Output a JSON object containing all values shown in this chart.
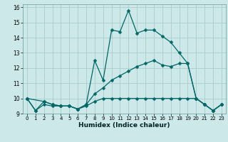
{
  "xlabel": "Humidex (Indice chaleur)",
  "background_color": "#cce8e8",
  "grid_color": "#aacccc",
  "line_color": "#006666",
  "xlim": [
    -0.5,
    23.5
  ],
  "ylim": [
    9.0,
    16.2
  ],
  "yticks": [
    9,
    10,
    11,
    12,
    13,
    14,
    15,
    16
  ],
  "xticks": [
    0,
    1,
    2,
    3,
    4,
    5,
    6,
    7,
    8,
    9,
    10,
    11,
    12,
    13,
    14,
    15,
    16,
    17,
    18,
    19,
    20,
    21,
    22,
    23
  ],
  "line1_x": [
    0,
    1,
    2,
    3,
    4,
    5,
    6,
    7,
    8,
    9,
    10,
    11,
    12,
    13,
    14,
    15,
    16,
    17,
    18,
    19,
    20,
    21,
    22,
    23
  ],
  "line1_y": [
    10.0,
    9.2,
    9.8,
    9.6,
    9.5,
    9.5,
    9.3,
    9.6,
    12.5,
    11.2,
    14.5,
    14.4,
    15.8,
    14.3,
    14.5,
    14.5,
    14.1,
    13.7,
    13.0,
    12.3,
    10.0,
    9.6,
    9.2,
    9.6
  ],
  "line2_x": [
    0,
    2,
    3,
    4,
    5,
    6,
    7,
    8,
    9,
    10,
    11,
    12,
    13,
    14,
    15,
    16,
    17,
    18,
    19,
    20,
    21,
    22,
    23
  ],
  "line2_y": [
    10.0,
    9.8,
    9.6,
    9.5,
    9.5,
    9.3,
    9.6,
    10.3,
    10.7,
    11.2,
    11.5,
    11.8,
    12.1,
    12.3,
    12.5,
    12.2,
    12.1,
    12.3,
    12.3,
    10.0,
    9.6,
    9.2,
    9.6
  ],
  "line3_x": [
    0,
    1,
    2,
    3,
    4,
    5,
    6,
    7,
    8,
    9,
    10,
    11,
    12,
    13,
    14,
    15,
    16,
    17,
    18,
    19,
    20,
    21,
    22,
    23
  ],
  "line3_y": [
    10.0,
    9.2,
    9.6,
    9.5,
    9.5,
    9.5,
    9.3,
    9.5,
    9.8,
    10.0,
    10.0,
    10.0,
    10.0,
    10.0,
    10.0,
    10.0,
    10.0,
    10.0,
    10.0,
    10.0,
    10.0,
    9.6,
    9.2,
    9.6
  ]
}
